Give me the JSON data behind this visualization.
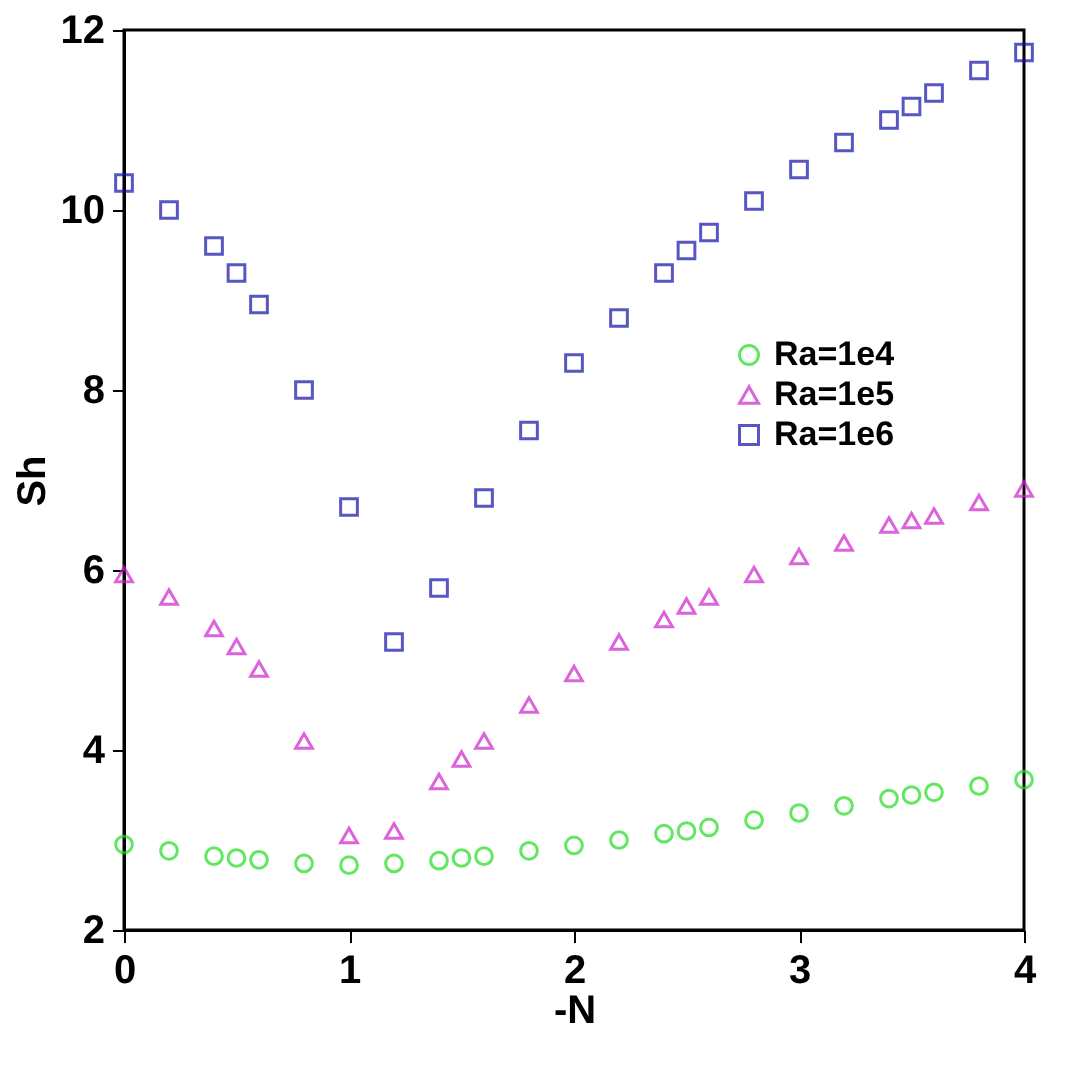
{
  "chart_data": {
    "type": "scatter",
    "xlabel": "-N",
    "ylabel": "Sh",
    "xlim": [
      0,
      4
    ],
    "ylim": [
      2,
      12
    ],
    "xticks": [
      0,
      1,
      2,
      3,
      4
    ],
    "yticks": [
      2,
      4,
      6,
      8,
      10,
      12
    ],
    "grid": false,
    "legend": "right",
    "series": [
      {
        "name": "Ra=1e4",
        "color": "#22dd22",
        "marker": "circle",
        "x": [
          0,
          0.2,
          0.4,
          0.5,
          0.6,
          0.8,
          1.0,
          1.2,
          1.4,
          1.5,
          1.6,
          1.8,
          2.0,
          2.2,
          2.4,
          2.5,
          2.6,
          2.8,
          3.0,
          3.2,
          3.4,
          3.5,
          3.6,
          3.8,
          4.0
        ],
        "values": [
          2.95,
          2.88,
          2.82,
          2.8,
          2.78,
          2.74,
          2.72,
          2.74,
          2.77,
          2.8,
          2.82,
          2.88,
          2.94,
          3.0,
          3.07,
          3.1,
          3.14,
          3.22,
          3.3,
          3.38,
          3.46,
          3.5,
          3.53,
          3.6,
          3.67
        ]
      },
      {
        "name": "Ra=1e5",
        "color": "#cc22cc",
        "marker": "triangle",
        "x": [
          0,
          0.2,
          0.4,
          0.5,
          0.6,
          0.8,
          1.0,
          1.2,
          1.4,
          1.5,
          1.6,
          1.8,
          2.0,
          2.2,
          2.4,
          2.5,
          2.6,
          2.8,
          3.0,
          3.2,
          3.4,
          3.5,
          3.6,
          3.8,
          4.0
        ],
        "values": [
          5.95,
          5.7,
          5.35,
          5.15,
          4.9,
          4.1,
          3.05,
          3.1,
          3.65,
          3.9,
          4.1,
          4.5,
          4.85,
          5.2,
          5.45,
          5.6,
          5.7,
          5.95,
          6.15,
          6.3,
          6.5,
          6.55,
          6.6,
          6.75,
          6.9
        ]
      },
      {
        "name": "Ra=1e6",
        "color": "#1111aa",
        "marker": "square",
        "x": [
          0,
          0.2,
          0.4,
          0.5,
          0.6,
          0.8,
          1.0,
          1.2,
          1.4,
          1.6,
          1.8,
          2.0,
          2.2,
          2.4,
          2.5,
          2.6,
          2.8,
          3.0,
          3.2,
          3.4,
          3.5,
          3.6,
          3.8,
          4.0
        ],
        "values": [
          10.3,
          10.0,
          9.6,
          9.3,
          8.95,
          8.0,
          6.7,
          5.2,
          5.8,
          6.8,
          7.55,
          8.3,
          8.8,
          9.3,
          9.55,
          9.75,
          10.1,
          10.45,
          10.75,
          11.0,
          11.15,
          11.3,
          11.55,
          11.75
        ]
      }
    ]
  }
}
